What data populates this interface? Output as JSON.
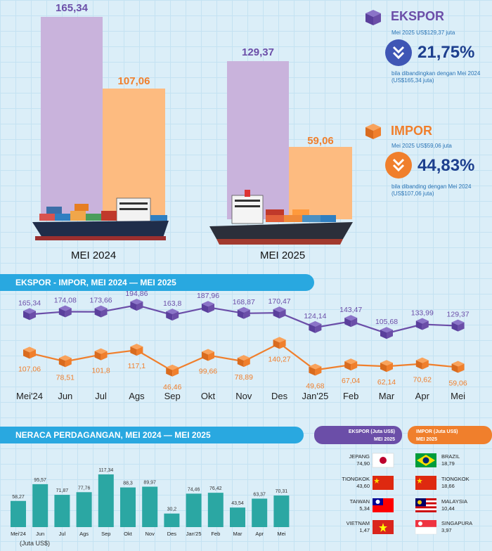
{
  "summary": {
    "periods": [
      "MEI 2024",
      "MEI 2025"
    ],
    "ekspor_values": [
      "165,34",
      "129,37"
    ],
    "impor_values": [
      "107,06",
      "59,06"
    ]
  },
  "ekspor": {
    "title": "EKSPOR",
    "subtitle": "Mei 2025 US$129,37 juta",
    "percent": "21,75%",
    "note_line1": "bila dibandingkan dengan Mei 2024",
    "note_line2": "(US$165,34 juta)"
  },
  "impor": {
    "title": "IMPOR",
    "subtitle": "Mei 2025 US$59,06 juta",
    "percent": "44,83%",
    "note_line1": "bila dibanding dengan Mei 2024",
    "note_line2": "(US$107,06 juta)"
  },
  "line_section": {
    "title": "EKSPOR - IMPOR, MEI 2024 — MEI 2025"
  },
  "bar_section": {
    "title": "NERACA PERDAGANGAN, MEI 2024 — MEI 2025",
    "unit_label": "(Juta US$)"
  },
  "partners": {
    "ekspor_header_line1": "EKSPOR (Juta US$)",
    "ekspor_header_line2": "MEI 2025",
    "impor_header_line1": "IMPOR (Juta US$)",
    "impor_header_line2": "MEI 2025",
    "ekspor": [
      {
        "name": "JEPANG",
        "value": "74,90",
        "flag": "japan-flag"
      },
      {
        "name": "TIONGKOK",
        "value": "43,60",
        "flag": "china-flag"
      },
      {
        "name": "TAIWAN",
        "value": "5,34",
        "flag": "taiwan-flag"
      },
      {
        "name": "VIETNAM",
        "value": "1,47",
        "flag": "vietnam-flag"
      }
    ],
    "impor": [
      {
        "name": "BRAZIL",
        "value": "18,79",
        "flag": "brazil-flag"
      },
      {
        "name": "TIONGKOK",
        "value": "18,66",
        "flag": "china-flag"
      },
      {
        "name": "MALAYSIA",
        "value": "10,44",
        "flag": "malaysia-flag"
      },
      {
        "name": "SINGAPURA",
        "value": "3,97",
        "flag": "singapore-flag"
      }
    ]
  },
  "colors": {
    "ekspor": "#6b4ea8",
    "ekspor_bar": "#c9b3dc",
    "impor": "#f07f2c",
    "impor_bar": "#fdbb80",
    "balance_bar": "#2ba7a3",
    "banner": "#29a8e0"
  },
  "chart_data": [
    {
      "type": "bar",
      "categories": [
        "MEI 2024",
        "MEI 2025"
      ],
      "series": [
        {
          "values": [
            165.34,
            129.37
          ]
        },
        {
          "values": [
            107.06,
            59.06
          ]
        }
      ],
      "ylim": [
        0,
        170
      ]
    },
    {
      "type": "line",
      "title": "EKSPOR - IMPOR, MEI 2024 — MEI 2025",
      "categories": [
        "Mei'24",
        "Jun",
        "Jul",
        "Ags",
        "Sep",
        "Okt",
        "Nov",
        "Des",
        "Jan'25",
        "Feb",
        "Mar",
        "Apr",
        "Mei"
      ],
      "series": [
        {
          "values": [
            165.34,
            174.08,
            173.66,
            194.86,
            163.8,
            187.96,
            168.87,
            170.47,
            124.14,
            143.47,
            105.68,
            133.99,
            129.37
          ],
          "labels": [
            "165,34",
            "174,08",
            "173,66",
            "194,86",
            "163,8",
            "187,96",
            "168,87",
            "170,47",
            "124,14",
            "143,47",
            "105,68",
            "133,99",
            "129,37"
          ]
        },
        {
          "values": [
            107.06,
            78.51,
            101.8,
            117.1,
            46.46,
            99.66,
            78.89,
            140.27,
            49.68,
            67.04,
            62.14,
            70.62,
            59.06
          ],
          "labels": [
            "107,06",
            "78,51",
            "101,8",
            "117,1",
            "46,46",
            "99,66",
            "78,89",
            "140,27",
            "49,68",
            "67,04",
            "62,14",
            "70,62",
            "59,06"
          ]
        }
      ]
    },
    {
      "type": "bar",
      "title": "NERACA PERDAGANGAN, MEI 2024 — MEI 2025",
      "ylabel": "(Juta US$)",
      "categories": [
        "Mei'24",
        "Jun",
        "Jul",
        "Ags",
        "Sep",
        "Okt",
        "Nov",
        "Des",
        "Jan'25",
        "Feb",
        "Mar",
        "Apr",
        "Mei"
      ],
      "values": [
        58.27,
        95.57,
        71.87,
        77.76,
        117.34,
        88.3,
        89.97,
        30.2,
        74.46,
        76.42,
        43.54,
        63.37,
        70.31
      ],
      "labels": [
        "58,27",
        "95,57",
        "71,87",
        "77,76",
        "117,34",
        "88,3",
        "89,97",
        "30,2",
        "74,46",
        "76,42",
        "43,54",
        "63,37",
        "70,31"
      ]
    }
  ]
}
